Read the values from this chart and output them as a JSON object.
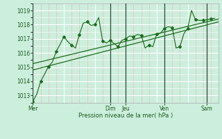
{
  "bg_color": "#cceedd",
  "grid_color_white": "#ffffff",
  "grid_color_pink": "#ffaaaa",
  "line_color": "#1a6e1a",
  "dark_line_color": "#114411",
  "xlabel_text": "Pression niveau de la mer( hPa )",
  "ylim": [
    1012.5,
    1019.5
  ],
  "yticks": [
    1013,
    1014,
    1015,
    1016,
    1017,
    1018,
    1019
  ],
  "xlim": [
    0,
    48
  ],
  "day_labels": [
    "Mer",
    "Dim",
    "Jeu",
    "Ven",
    "Sam"
  ],
  "day_positions": [
    0,
    20,
    24,
    34,
    45
  ],
  "vline_positions": [
    0,
    20,
    24,
    34,
    45
  ],
  "series_jagged_x": [
    0,
    1,
    2,
    3,
    4,
    5,
    6,
    7,
    8,
    9,
    10,
    11,
    12,
    13,
    14,
    15,
    16,
    17,
    18,
    19,
    20,
    21,
    22,
    23,
    24,
    25,
    26,
    27,
    28,
    29,
    30,
    31,
    32,
    33,
    34,
    35,
    36,
    37,
    38,
    39,
    40,
    41,
    42,
    43,
    44,
    45,
    46,
    47
  ],
  "series_jagged_y": [
    1012.6,
    1013.1,
    1014.0,
    1014.5,
    1015.05,
    1015.35,
    1016.1,
    1016.6,
    1017.15,
    1016.8,
    1016.55,
    1016.35,
    1017.3,
    1018.1,
    1018.2,
    1017.95,
    1018.0,
    1018.5,
    1016.85,
    1016.7,
    1016.9,
    1016.65,
    1016.45,
    1016.9,
    1017.0,
    1017.2,
    1017.15,
    1017.3,
    1017.25,
    1016.35,
    1016.55,
    1016.45,
    1017.35,
    1017.4,
    1017.75,
    1017.85,
    1017.8,
    1016.35,
    1016.45,
    1017.35,
    1017.75,
    1019.0,
    1018.35,
    1018.3,
    1018.3,
    1018.35,
    1018.4,
    1018.45
  ],
  "series_trend1_x": [
    0,
    48
  ],
  "series_trend1_y": [
    1014.8,
    1018.2
  ],
  "series_trend2_x": [
    0,
    48
  ],
  "series_trend2_y": [
    1015.25,
    1018.4
  ]
}
